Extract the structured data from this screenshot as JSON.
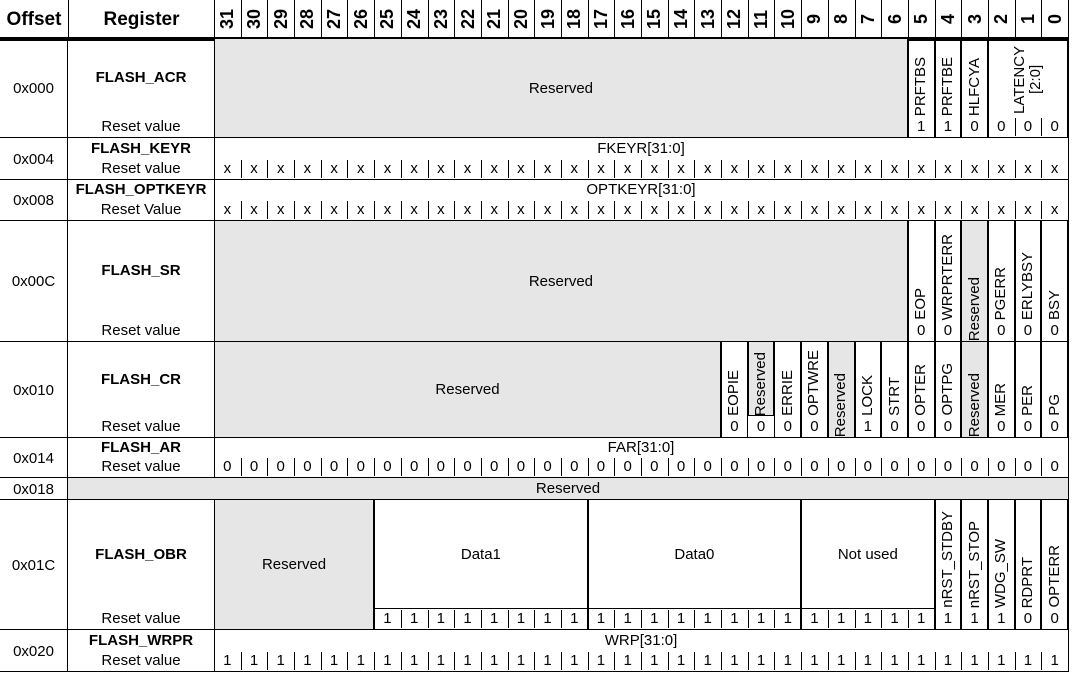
{
  "header": {
    "offset": "Offset",
    "register": "Register",
    "bits": [
      "31",
      "30",
      "29",
      "28",
      "27",
      "26",
      "25",
      "24",
      "23",
      "22",
      "21",
      "20",
      "19",
      "18",
      "17",
      "16",
      "15",
      "14",
      "13",
      "12",
      "11",
      "10",
      "9",
      "8",
      "7",
      "6",
      "5",
      "4",
      "3",
      "2",
      "1",
      "0"
    ]
  },
  "colors": {
    "reserved_fill": "#e6e6e6"
  },
  "registers": [
    {
      "offset": "0x000",
      "name": "FLASH_ACR",
      "reset_label": "Reset value",
      "fields": [
        {
          "label": "Reserved",
          "hi": 31,
          "lo": 6,
          "reserved": true
        },
        {
          "label": "PRFTBS",
          "hi": 5,
          "lo": 5,
          "vertical": true,
          "reset": [
            "1"
          ]
        },
        {
          "label": "PRFTBE",
          "hi": 4,
          "lo": 4,
          "vertical": true,
          "reset": [
            "1"
          ]
        },
        {
          "label": "HLFCYA",
          "hi": 3,
          "lo": 3,
          "vertical": true,
          "reset": [
            "0"
          ]
        },
        {
          "label": "LATENCY [2:0]",
          "hi": 2,
          "lo": 0,
          "vertical": true,
          "reset": [
            "0",
            "0",
            "0"
          ]
        }
      ]
    },
    {
      "offset": "0x004",
      "name": "FLASH_KEYR",
      "reset_label": "Reset value",
      "fields": [
        {
          "label": "FKEYR[31:0]",
          "hi": 31,
          "lo": 0,
          "reset": [
            "x",
            "x",
            "x",
            "x",
            "x",
            "x",
            "x",
            "x",
            "x",
            "x",
            "x",
            "x",
            "x",
            "x",
            "x",
            "x",
            "x",
            "x",
            "x",
            "x",
            "x",
            "x",
            "x",
            "x",
            "x",
            "x",
            "x",
            "x",
            "x",
            "x",
            "x",
            "x"
          ]
        }
      ]
    },
    {
      "offset": "0x008",
      "name": "FLASH_OPTKEYR",
      "reset_label": "Reset Value",
      "fields": [
        {
          "label": "OPTKEYR[31:0]",
          "hi": 31,
          "lo": 0,
          "reset": [
            "x",
            "x",
            "x",
            "x",
            "x",
            "x",
            "x",
            "x",
            "x",
            "x",
            "x",
            "x",
            "x",
            "x",
            "x",
            "x",
            "x",
            "x",
            "x",
            "x",
            "x",
            "x",
            "x",
            "x",
            "x",
            "x",
            "x",
            "x",
            "x",
            "x",
            "x",
            "x"
          ]
        }
      ]
    },
    {
      "offset": "0x00C",
      "name": "FLASH_SR",
      "reset_label": "Reset value",
      "fields": [
        {
          "label": "Reserved",
          "hi": 31,
          "lo": 6,
          "reserved": true
        },
        {
          "label": "EOP",
          "hi": 5,
          "lo": 5,
          "vertical": true,
          "reset": [
            "0"
          ]
        },
        {
          "label": "WRPRTERR",
          "hi": 4,
          "lo": 4,
          "vertical": true,
          "reset": [
            "0"
          ]
        },
        {
          "label": "Reserved",
          "hi": 3,
          "lo": 3,
          "vertical": true,
          "reserved": true
        },
        {
          "label": "PGERR",
          "hi": 2,
          "lo": 2,
          "vertical": true,
          "reset": [
            "0"
          ]
        },
        {
          "label": "ERLYBSY",
          "hi": 1,
          "lo": 1,
          "vertical": true,
          "reset": [
            "0"
          ]
        },
        {
          "label": "BSY",
          "hi": 0,
          "lo": 0,
          "vertical": true,
          "reset": [
            "0"
          ]
        }
      ]
    },
    {
      "offset": "0x010",
      "name": "FLASH_CR",
      "reset_label": "Reset value",
      "fields": [
        {
          "label": "Reserved",
          "hi": 31,
          "lo": 13,
          "reserved": true
        },
        {
          "label": "EOPIE",
          "hi": 12,
          "lo": 12,
          "vertical": true,
          "reset": [
            "0"
          ]
        },
        {
          "label": "Reserved",
          "hi": 11,
          "lo": 11,
          "vertical": true,
          "reserved": true,
          "reset": [
            "0"
          ]
        },
        {
          "label": "ERRIE",
          "hi": 10,
          "lo": 10,
          "vertical": true,
          "reset": [
            "0"
          ]
        },
        {
          "label": "OPTWRE",
          "hi": 9,
          "lo": 9,
          "vertical": true,
          "reset": [
            "0"
          ]
        },
        {
          "label": "Reserved",
          "hi": 8,
          "lo": 8,
          "vertical": true,
          "reserved": true
        },
        {
          "label": "LOCK",
          "hi": 7,
          "lo": 7,
          "vertical": true,
          "reset": [
            "1"
          ]
        },
        {
          "label": "STRT",
          "hi": 6,
          "lo": 6,
          "vertical": true,
          "reset": [
            "0"
          ]
        },
        {
          "label": "OPTER",
          "hi": 5,
          "lo": 5,
          "vertical": true,
          "reset": [
            "0"
          ]
        },
        {
          "label": "OPTPG",
          "hi": 4,
          "lo": 4,
          "vertical": true,
          "reset": [
            "0"
          ]
        },
        {
          "label": "Reserved",
          "hi": 3,
          "lo": 3,
          "vertical": true,
          "reserved": true
        },
        {
          "label": "MER",
          "hi": 2,
          "lo": 2,
          "vertical": true,
          "reset": [
            "0"
          ]
        },
        {
          "label": "PER",
          "hi": 1,
          "lo": 1,
          "vertical": true,
          "reset": [
            "0"
          ]
        },
        {
          "label": "PG",
          "hi": 0,
          "lo": 0,
          "vertical": true,
          "reset": [
            "0"
          ]
        }
      ]
    },
    {
      "offset": "0x014",
      "name": "FLASH_AR",
      "reset_label": "Reset value",
      "fields": [
        {
          "label": "FAR[31:0]",
          "hi": 31,
          "lo": 0,
          "reset": [
            "0",
            "0",
            "0",
            "0",
            "0",
            "0",
            "0",
            "0",
            "0",
            "0",
            "0",
            "0",
            "0",
            "0",
            "0",
            "0",
            "0",
            "0",
            "0",
            "0",
            "0",
            "0",
            "0",
            "0",
            "0",
            "0",
            "0",
            "0",
            "0",
            "0",
            "0",
            "0"
          ]
        }
      ]
    },
    {
      "offset": "0x018",
      "full_reserved": "Reserved"
    },
    {
      "offset": "0x01C",
      "name": "FLASH_OBR",
      "reset_label": "Reset value",
      "fields": [
        {
          "label": "Reserved",
          "hi": 31,
          "lo": 26,
          "reserved": true
        },
        {
          "label": "Data1",
          "hi": 25,
          "lo": 18,
          "line_above_reset": true,
          "reset": [
            "1",
            "1",
            "1",
            "1",
            "1",
            "1",
            "1",
            "1"
          ]
        },
        {
          "label": "Data0",
          "hi": 17,
          "lo": 10,
          "line_above_reset": true,
          "reset": [
            "1",
            "1",
            "1",
            "1",
            "1",
            "1",
            "1",
            "1"
          ]
        },
        {
          "label": "Not used",
          "hi": 9,
          "lo": 5,
          "line_above_reset": true,
          "reset": [
            "1",
            "1",
            "1",
            "1",
            "1"
          ]
        },
        {
          "label": "nRST_STDBY",
          "hi": 4,
          "lo": 4,
          "vertical": true,
          "reset": [
            "1"
          ]
        },
        {
          "label": "nRST_STOP",
          "hi": 3,
          "lo": 3,
          "vertical": true,
          "reset": [
            "1"
          ]
        },
        {
          "label": "WDG_SW",
          "hi": 2,
          "lo": 2,
          "vertical": true,
          "reset": [
            "1"
          ]
        },
        {
          "label": "RDPRT",
          "hi": 1,
          "lo": 1,
          "vertical": true,
          "reset": [
            "0"
          ]
        },
        {
          "label": "OPTERR",
          "hi": 0,
          "lo": 0,
          "vertical": true,
          "reset": [
            "0"
          ]
        }
      ]
    },
    {
      "offset": "0x020",
      "name": "FLASH_WRPR",
      "reset_label": "Reset value",
      "fields": [
        {
          "label": "WRP[31:0]",
          "hi": 31,
          "lo": 0,
          "reset": [
            "1",
            "1",
            "1",
            "1",
            "1",
            "1",
            "1",
            "1",
            "1",
            "1",
            "1",
            "1",
            "1",
            "1",
            "1",
            "1",
            "1",
            "1",
            "1",
            "1",
            "1",
            "1",
            "1",
            "1",
            "1",
            "1",
            "1",
            "1",
            "1",
            "1",
            "1",
            "1"
          ]
        }
      ]
    }
  ]
}
